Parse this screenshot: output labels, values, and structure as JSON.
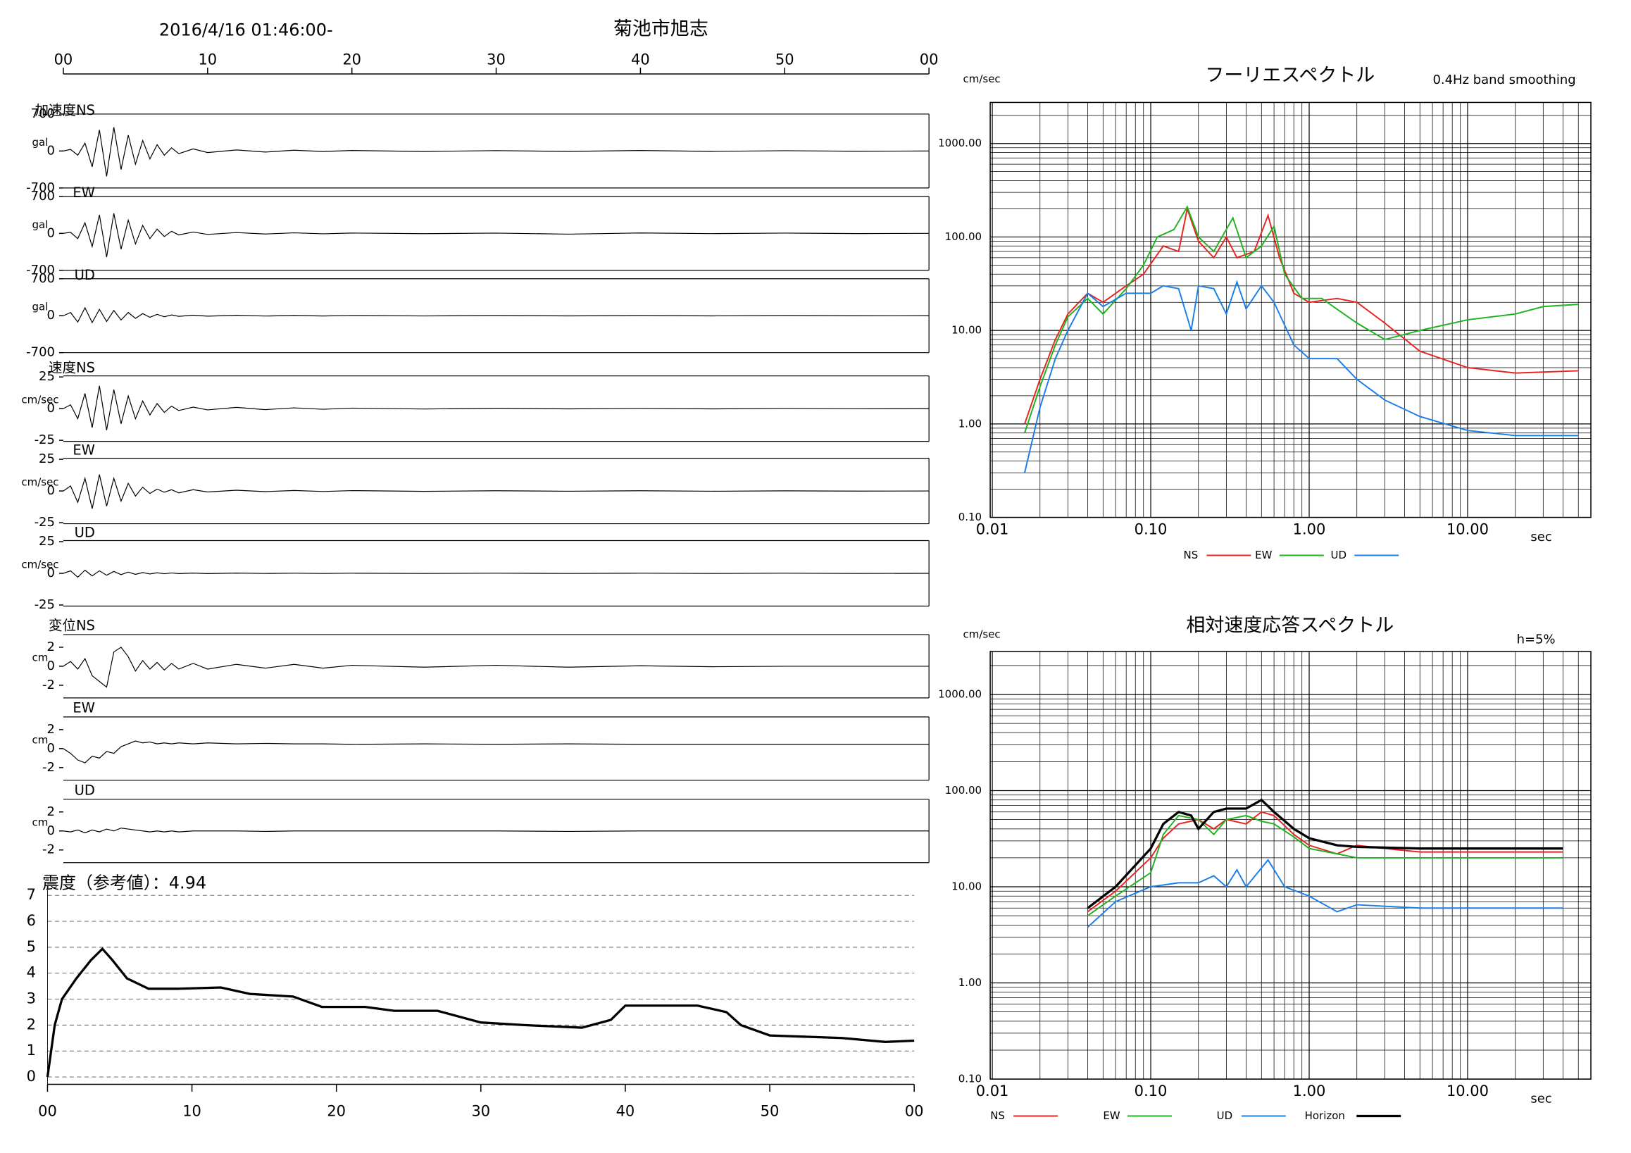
{
  "header": {
    "datetime": "2016/4/16 01:46:00-",
    "station": "菊池市旭志"
  },
  "chart_data": [
    {
      "type": "waveform",
      "color": "#000000",
      "xlim": [
        0,
        60
      ],
      "xticks": [
        {
          "value": 0,
          "label": "00"
        },
        10,
        20,
        30,
        40,
        50,
        {
          "value": 60,
          "label": "00"
        }
      ],
      "x": [
        0,
        0.5,
        1,
        1.5,
        2,
        2.5,
        3,
        3.5,
        4,
        4.5,
        5,
        5.5,
        6,
        6.5,
        7,
        7.5,
        8,
        9,
        10,
        12,
        14,
        16,
        18,
        20,
        25,
        30,
        35,
        40,
        45,
        50,
        55,
        60
      ],
      "panels": [
        {
          "label": "加速度NS",
          "unit": "gal",
          "ylim": [
            -700,
            700
          ],
          "yticks": [
            700,
            0,
            -700
          ],
          "values": [
            0,
            30,
            -80,
            150,
            -300,
            400,
            -480,
            450,
            -350,
            300,
            -250,
            200,
            -150,
            120,
            -80,
            60,
            -50,
            40,
            -30,
            20,
            -20,
            15,
            -10,
            10,
            -10,
            8,
            -8,
            10,
            -8,
            6,
            -5,
            0
          ]
        },
        {
          "label": "EW",
          "unit": "gal",
          "ylim": [
            -700,
            700
          ],
          "yticks": [
            700,
            0,
            -700
          ],
          "values": [
            0,
            20,
            -100,
            200,
            -250,
            350,
            -450,
            380,
            -300,
            250,
            -200,
            150,
            -100,
            80,
            -60,
            40,
            -30,
            25,
            -20,
            15,
            -12,
            10,
            -8,
            6,
            -6,
            5,
            -15,
            8,
            -5,
            5,
            -4,
            0
          ]
        },
        {
          "label": "UD",
          "unit": "gal",
          "ylim": [
            -700,
            700
          ],
          "yticks": [
            700,
            0,
            -700
          ],
          "values": [
            0,
            60,
            -120,
            150,
            -130,
            120,
            -110,
            100,
            -80,
            60,
            -50,
            40,
            -30,
            25,
            -20,
            15,
            -12,
            10,
            -8,
            8,
            -6,
            5,
            -5,
            4,
            -4,
            3,
            -3,
            3,
            -3,
            3,
            -2,
            0
          ]
        },
        {
          "label": "速度NS",
          "unit": "cm/sec",
          "ylim": [
            -25,
            25
          ],
          "yticks": [
            25,
            0,
            -25
          ],
          "values": [
            0,
            3,
            -8,
            12,
            -15,
            18,
            -17,
            15,
            -12,
            10,
            -8,
            6,
            -5,
            4,
            -3,
            2,
            -1.5,
            1.2,
            -1,
            1,
            -0.8,
            0.6,
            -0.5,
            0.4,
            -0.3,
            0.3,
            -0.2,
            0.2,
            -0.2,
            0.2,
            -0.1,
            0
          ]
        },
        {
          "label": "EW",
          "unit": "cm/sec",
          "ylim": [
            -25,
            25
          ],
          "yticks": [
            25,
            0,
            -25
          ],
          "values": [
            0,
            4,
            -9,
            10,
            -14,
            13,
            -12,
            10,
            -8,
            6,
            -4,
            3,
            -2,
            1.5,
            -1,
            1,
            -1.5,
            1,
            -0.8,
            0.6,
            -0.5,
            0.4,
            -0.4,
            0.3,
            -0.3,
            0.2,
            -0.2,
            0.2,
            -0.2,
            0.1,
            -0.1,
            0
          ]
        },
        {
          "label": "UD",
          "unit": "cm/sec",
          "ylim": [
            -25,
            25
          ],
          "yticks": [
            25,
            0,
            -25
          ],
          "values": [
            0,
            2,
            -3,
            2.5,
            -2,
            2,
            -1.5,
            1.5,
            -1,
            1,
            -0.8,
            0.6,
            -0.5,
            0.4,
            -0.3,
            0.3,
            -0.2,
            0.2,
            -0.2,
            0.2,
            -0.1,
            0.1,
            -0.1,
            0.1,
            -0.1,
            0.1,
            -0.1,
            0.1,
            -0.1,
            0.1,
            -0.1,
            0
          ]
        },
        {
          "label": "変位NS",
          "unit": "cm",
          "ylim": [
            -2,
            2
          ],
          "yticks": [
            2,
            0,
            -2
          ],
          "values": [
            0,
            0.5,
            -0.3,
            0.8,
            -1,
            -1.6,
            -2.2,
            1.5,
            2,
            1,
            -0.5,
            0.6,
            -0.3,
            0.4,
            -0.4,
            0.3,
            -0.3,
            0.3,
            -0.3,
            0.2,
            -0.2,
            0.2,
            -0.2,
            0.1,
            -0.1,
            0.1,
            -0.1,
            0.05,
            -0.05,
            0,
            0,
            0
          ]
        },
        {
          "label": "EW",
          "unit": "cm",
          "ylim": [
            -2,
            2
          ],
          "yticks": [
            2,
            0,
            -2
          ],
          "values": [
            0,
            -0.5,
            -1.2,
            -1.5,
            -0.8,
            -1,
            -0.3,
            -0.5,
            0.2,
            0.5,
            0.8,
            0.6,
            0.7,
            0.5,
            0.6,
            0.5,
            0.6,
            0.5,
            0.6,
            0.5,
            0.55,
            0.5,
            0.5,
            0.45,
            0.5,
            0.45,
            0.5,
            0.45,
            0.45,
            0.45,
            0.45,
            0.45
          ]
        },
        {
          "label": "UD",
          "unit": "cm",
          "ylim": [
            -2,
            2
          ],
          "yticks": [
            2,
            0,
            -2
          ],
          "values": [
            0,
            -0.1,
            0.1,
            -0.2,
            0.1,
            -0.1,
            0.2,
            0,
            0.3,
            0.2,
            0.1,
            0,
            -0.1,
            0,
            -0.1,
            0,
            -0.1,
            0,
            0,
            0,
            -0.05,
            0,
            0,
            0,
            0,
            0,
            -0.05,
            0,
            0,
            0,
            0,
            0
          ]
        }
      ]
    },
    {
      "type": "line",
      "title": "震度（参考値）：4.94",
      "color": "#000000",
      "grid": true,
      "xlim": [
        0,
        60
      ],
      "xticks": [
        {
          "value": 0,
          "label": "00"
        },
        10,
        20,
        30,
        40,
        50,
        {
          "value": 60,
          "label": "00"
        }
      ],
      "ylim": [
        0,
        7
      ],
      "yticks": [
        0,
        1,
        2,
        3,
        4,
        5,
        6,
        7
      ],
      "x": [
        0,
        0.5,
        1,
        2,
        3,
        3.8,
        4.5,
        5.5,
        7,
        9,
        12,
        14,
        17,
        19,
        22,
        24,
        27,
        30,
        33,
        35,
        37,
        39,
        40,
        45,
        47,
        48,
        50,
        55,
        58,
        60
      ],
      "values": [
        0,
        2,
        3,
        3.8,
        4.5,
        4.94,
        4.5,
        3.8,
        3.4,
        3.4,
        3.45,
        3.2,
        3.1,
        2.7,
        2.7,
        2.55,
        2.55,
        2.1,
        2,
        1.95,
        1.9,
        2.2,
        2.75,
        2.75,
        2.5,
        2,
        1.6,
        1.5,
        1.35,
        1.4
      ]
    },
    {
      "type": "loglog",
      "title": "フーリエスペクトル",
      "subtitle": "0.4Hz band smoothing",
      "y_label": "cm/sec",
      "x_label": "sec",
      "xlim": [
        0.0097,
        60
      ],
      "ylim": [
        0.1,
        2750
      ],
      "xticks": [
        0.01,
        {
          "value": 0.1,
          "label": "0.10"
        },
        {
          "value": 1,
          "label": "1.00"
        },
        {
          "value": 10,
          "label": "10.00"
        }
      ],
      "yticks": [
        {
          "value": 0.1,
          "label": "0.10"
        },
        {
          "value": 1,
          "label": "1.00"
        },
        {
          "value": 10,
          "label": "10.00"
        },
        {
          "value": 100,
          "label": "100.00"
        },
        {
          "value": 1000,
          "label": "1000.00"
        }
      ],
      "minor_xticks": [
        0.02,
        0.03,
        0.04,
        0.05,
        0.06,
        0.07,
        0.08,
        0.09,
        0.2,
        0.3,
        0.4,
        0.5,
        0.6,
        0.7,
        0.8,
        0.9,
        2,
        3,
        4,
        5,
        6,
        7,
        8,
        9,
        20,
        30,
        40,
        50
      ],
      "minor_yticks": [
        0.2,
        0.3,
        0.4,
        0.5,
        0.6,
        0.7,
        0.8,
        0.9,
        2,
        3,
        4,
        5,
        6,
        7,
        8,
        9,
        20,
        30,
        40,
        50,
        60,
        70,
        80,
        90,
        200,
        300,
        400,
        500,
        600,
        700,
        800,
        900,
        2000
      ],
      "series": [
        {
          "name": "NS",
          "color": "#e8231f",
          "x": [
            0.016,
            0.02,
            0.025,
            0.03,
            0.04,
            0.05,
            0.07,
            0.09,
            0.12,
            0.15,
            0.17,
            0.2,
            0.25,
            0.3,
            0.35,
            0.45,
            0.55,
            0.65,
            0.8,
            1,
            1.5,
            2,
            3,
            5,
            10,
            20,
            50
          ],
          "values": [
            1,
            3,
            8,
            15,
            25,
            20,
            30,
            40,
            80,
            70,
            200,
            90,
            60,
            100,
            60,
            70,
            170,
            60,
            25,
            20,
            22,
            20,
            12,
            6,
            4,
            3.5,
            3.7
          ]
        },
        {
          "name": "EW",
          "color": "#1fb21f",
          "x": [
            0.016,
            0.02,
            0.025,
            0.03,
            0.04,
            0.05,
            0.07,
            0.09,
            0.11,
            0.14,
            0.17,
            0.2,
            0.25,
            0.33,
            0.4,
            0.5,
            0.6,
            0.7,
            0.9,
            1.2,
            2,
            3,
            5,
            10,
            20,
            30,
            50
          ],
          "values": [
            0.8,
            2.5,
            7,
            14,
            22,
            15,
            28,
            50,
            100,
            120,
            210,
            100,
            70,
            160,
            60,
            80,
            130,
            40,
            22,
            22,
            12,
            8,
            10,
            13,
            15,
            18,
            19
          ]
        },
        {
          "name": "UD",
          "color": "#1a7ee8",
          "x": [
            0.016,
            0.02,
            0.025,
            0.03,
            0.04,
            0.05,
            0.07,
            0.1,
            0.12,
            0.15,
            0.18,
            0.2,
            0.25,
            0.3,
            0.35,
            0.4,
            0.5,
            0.6,
            0.8,
            1,
            1.5,
            2,
            3,
            5,
            10,
            20,
            50
          ],
          "values": [
            0.3,
            1.5,
            5,
            10,
            25,
            18,
            25,
            25,
            30,
            28,
            10,
            30,
            28,
            15,
            33,
            17,
            30,
            20,
            7,
            5,
            5,
            3,
            1.8,
            1.2,
            0.85,
            0.75,
            0.75
          ]
        }
      ]
    },
    {
      "type": "loglog",
      "title": "相対速度応答スペクトル",
      "subtitle": "h=5%",
      "y_label": "cm/sec",
      "x_label": "sec",
      "xlim": [
        0.0097,
        60
      ],
      "ylim": [
        0.1,
        2800
      ],
      "xticks": [
        0.01,
        {
          "value": 0.1,
          "label": "0.10"
        },
        {
          "value": 1,
          "label": "1.00"
        },
        {
          "value": 10,
          "label": "10.00"
        }
      ],
      "yticks": [
        {
          "value": 0.1,
          "label": "0.10"
        },
        {
          "value": 1,
          "label": "1.00"
        },
        {
          "value": 10,
          "label": "10.00"
        },
        {
          "value": 100,
          "label": "100.00"
        },
        {
          "value": 1000,
          "label": "1000.00"
        }
      ],
      "minor_xticks": [
        0.02,
        0.03,
        0.04,
        0.05,
        0.06,
        0.07,
        0.08,
        0.09,
        0.2,
        0.3,
        0.4,
        0.5,
        0.6,
        0.7,
        0.8,
        0.9,
        2,
        3,
        4,
        5,
        6,
        7,
        8,
        9,
        20,
        30,
        40,
        50
      ],
      "minor_yticks": [
        0.2,
        0.3,
        0.4,
        0.5,
        0.6,
        0.7,
        0.8,
        0.9,
        2,
        3,
        4,
        5,
        6,
        7,
        8,
        9,
        20,
        30,
        40,
        50,
        60,
        70,
        80,
        90,
        200,
        300,
        400,
        500,
        600,
        700,
        800,
        900,
        2000
      ],
      "series": [
        {
          "name": "NS",
          "color": "#e8231f",
          "x": [
            0.04,
            0.06,
            0.1,
            0.12,
            0.15,
            0.2,
            0.25,
            0.3,
            0.4,
            0.5,
            0.6,
            0.8,
            1,
            1.5,
            2,
            3,
            5,
            10,
            40
          ],
          "values": [
            5.5,
            9,
            20,
            32,
            45,
            50,
            40,
            50,
            45,
            60,
            55,
            35,
            27,
            22,
            27,
            25,
            23,
            23,
            23
          ]
        },
        {
          "name": "EW",
          "color": "#1fb21f",
          "x": [
            0.04,
            0.06,
            0.1,
            0.12,
            0.15,
            0.2,
            0.25,
            0.3,
            0.4,
            0.5,
            0.6,
            0.8,
            1,
            1.5,
            2,
            5,
            10,
            40
          ],
          "values": [
            5,
            8,
            14,
            35,
            55,
            50,
            35,
            50,
            55,
            48,
            45,
            33,
            25,
            22,
            20,
            20,
            20,
            20
          ]
        },
        {
          "name": "UD",
          "color": "#1a7ee8",
          "x": [
            0.04,
            0.06,
            0.1,
            0.15,
            0.2,
            0.25,
            0.3,
            0.35,
            0.4,
            0.55,
            0.7,
            1,
            1.5,
            2,
            5,
            10,
            40
          ],
          "values": [
            3.8,
            7,
            10,
            11,
            11,
            13,
            10,
            15,
            10,
            19,
            10,
            8,
            5.5,
            6.5,
            6,
            6,
            6
          ]
        },
        {
          "name": "Horizon",
          "color": "#000000",
          "x": [
            0.04,
            0.06,
            0.1,
            0.12,
            0.15,
            0.18,
            0.2,
            0.25,
            0.3,
            0.4,
            0.5,
            0.6,
            0.8,
            1,
            1.5,
            2,
            5,
            10,
            40
          ],
          "values": [
            6,
            10,
            25,
            45,
            60,
            55,
            40,
            60,
            65,
            65,
            80,
            60,
            40,
            32,
            27,
            26,
            25,
            25,
            25
          ]
        }
      ]
    }
  ]
}
